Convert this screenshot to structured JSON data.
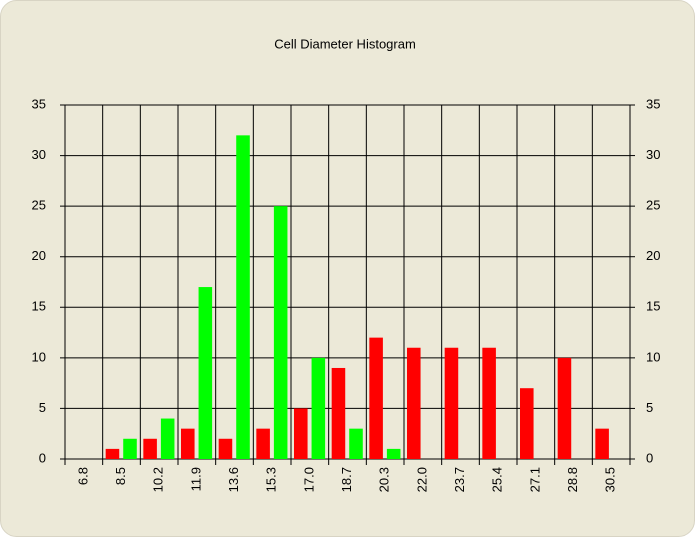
{
  "chart_data": {
    "type": "bar",
    "title": "Cell Diameter Histogram",
    "categories": [
      "6.8",
      "8.5",
      "10.2",
      "11.9",
      "13.6",
      "15.3",
      "17.0",
      "18.7",
      "20.3",
      "22.0",
      "23.7",
      "25.4",
      "27.1",
      "28.8",
      "30.5"
    ],
    "series": [
      {
        "color": "#ff0000",
        "values": [
          0,
          1,
          2,
          3,
          2,
          3,
          5,
          9,
          12,
          11,
          11,
          11,
          7,
          10,
          3
        ]
      },
      {
        "color": "#00ff00",
        "values": [
          0,
          2,
          4,
          17,
          32,
          25,
          10,
          3,
          1,
          0,
          0,
          0,
          0,
          0,
          0
        ]
      }
    ],
    "ylim": [
      0,
      35
    ],
    "yticks": [
      0,
      5,
      10,
      15,
      20,
      25,
      30,
      35
    ],
    "y2lim": [
      0,
      35
    ],
    "y2ticks": [
      0,
      5,
      10,
      15,
      20,
      25,
      30,
      35
    ],
    "grid": true
  }
}
